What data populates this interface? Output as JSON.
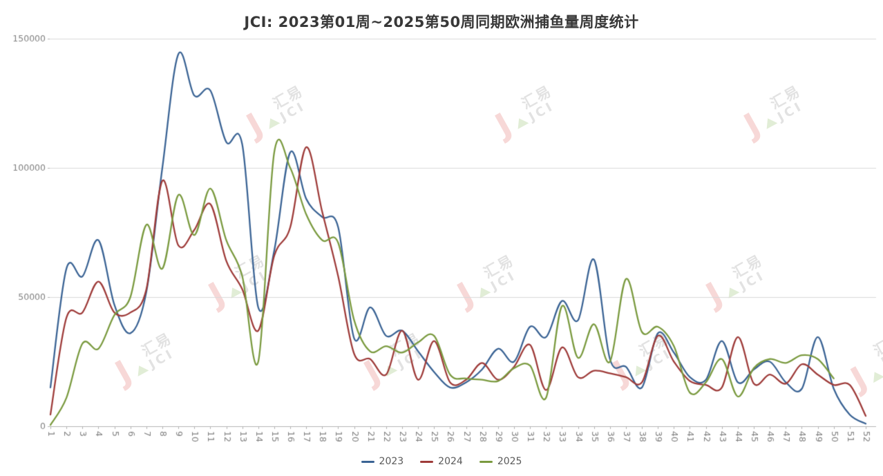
{
  "title": "JCI: 2023第01周~2025第50周同期欧洲捕鱼量周度统计",
  "watermark": {
    "brand_cn": "汇易",
    "brand_en": "JCI"
  },
  "legend": {
    "items": [
      "2023",
      "2024",
      "2025"
    ]
  },
  "axis_colors": {
    "grid": "#d9d9d9",
    "axis": "#b3b3b3",
    "tick_label": "#808080"
  },
  "chart_data": {
    "type": "line",
    "title": "JCI: 2023第01周~2025第50周同期欧洲捕鱼量周度统计",
    "xlabel": "",
    "ylabel": "",
    "x": [
      1,
      2,
      3,
      4,
      5,
      6,
      7,
      8,
      9,
      10,
      11,
      12,
      13,
      14,
      15,
      16,
      17,
      18,
      19,
      20,
      21,
      22,
      23,
      24,
      25,
      26,
      27,
      28,
      29,
      30,
      31,
      32,
      33,
      34,
      35,
      36,
      37,
      38,
      39,
      40,
      41,
      42,
      43,
      44,
      45,
      46,
      47,
      48,
      49,
      50,
      51,
      52
    ],
    "ylim": [
      0,
      150000
    ],
    "yticks": [
      0,
      50000,
      100000,
      150000
    ],
    "grid": "horizontal",
    "legend_position": "bottom",
    "smooth": true,
    "series": [
      {
        "name": "2023",
        "color": "#3a6394",
        "values": [
          15000,
          61000,
          58000,
          72000,
          47000,
          36000,
          52000,
          100000,
          144000,
          128000,
          130000,
          110000,
          109000,
          46000,
          68000,
          106000,
          88000,
          81000,
          77000,
          34000,
          46000,
          35000,
          37000,
          29000,
          21000,
          15000,
          17000,
          22000,
          30000,
          25000,
          38500,
          34500,
          48500,
          41000,
          64500,
          26000,
          23000,
          15000,
          36000,
          28500,
          19000,
          18000,
          33000,
          17000,
          22000,
          25000,
          17000,
          14500,
          34500,
          14500,
          4500,
          1000
        ]
      },
      {
        "name": "2024",
        "color": "#9e3b39",
        "values": [
          4500,
          42000,
          44000,
          56000,
          44000,
          44000,
          53000,
          95000,
          70000,
          76000,
          86000,
          64000,
          53000,
          37000,
          66000,
          77000,
          108000,
          83000,
          58000,
          28000,
          26000,
          20000,
          37000,
          18000,
          33000,
          17000,
          18000,
          24500,
          18000,
          23000,
          31500,
          14000,
          30500,
          19000,
          21500,
          20500,
          19000,
          17000,
          35000,
          25000,
          17500,
          16000,
          15000,
          34500,
          16500,
          20000,
          16500,
          24000,
          20000,
          16000,
          16000,
          4000
        ]
      },
      {
        "name": "2025",
        "color": "#7a9a3f",
        "values": [
          500,
          11000,
          32000,
          30000,
          43000,
          50000,
          78000,
          61000,
          89500,
          74000,
          92000,
          72000,
          58000,
          25000,
          106000,
          100000,
          82000,
          72000,
          71000,
          41000,
          29000,
          31000,
          28500,
          32500,
          35000,
          20000,
          18500,
          18000,
          17500,
          22500,
          23500,
          11000,
          46500,
          26500,
          39500,
          25000,
          57000,
          36500,
          38500,
          31000,
          13000,
          17000,
          26000,
          11500,
          22500,
          26000,
          24500,
          27500,
          26000,
          18500
        ]
      }
    ]
  }
}
